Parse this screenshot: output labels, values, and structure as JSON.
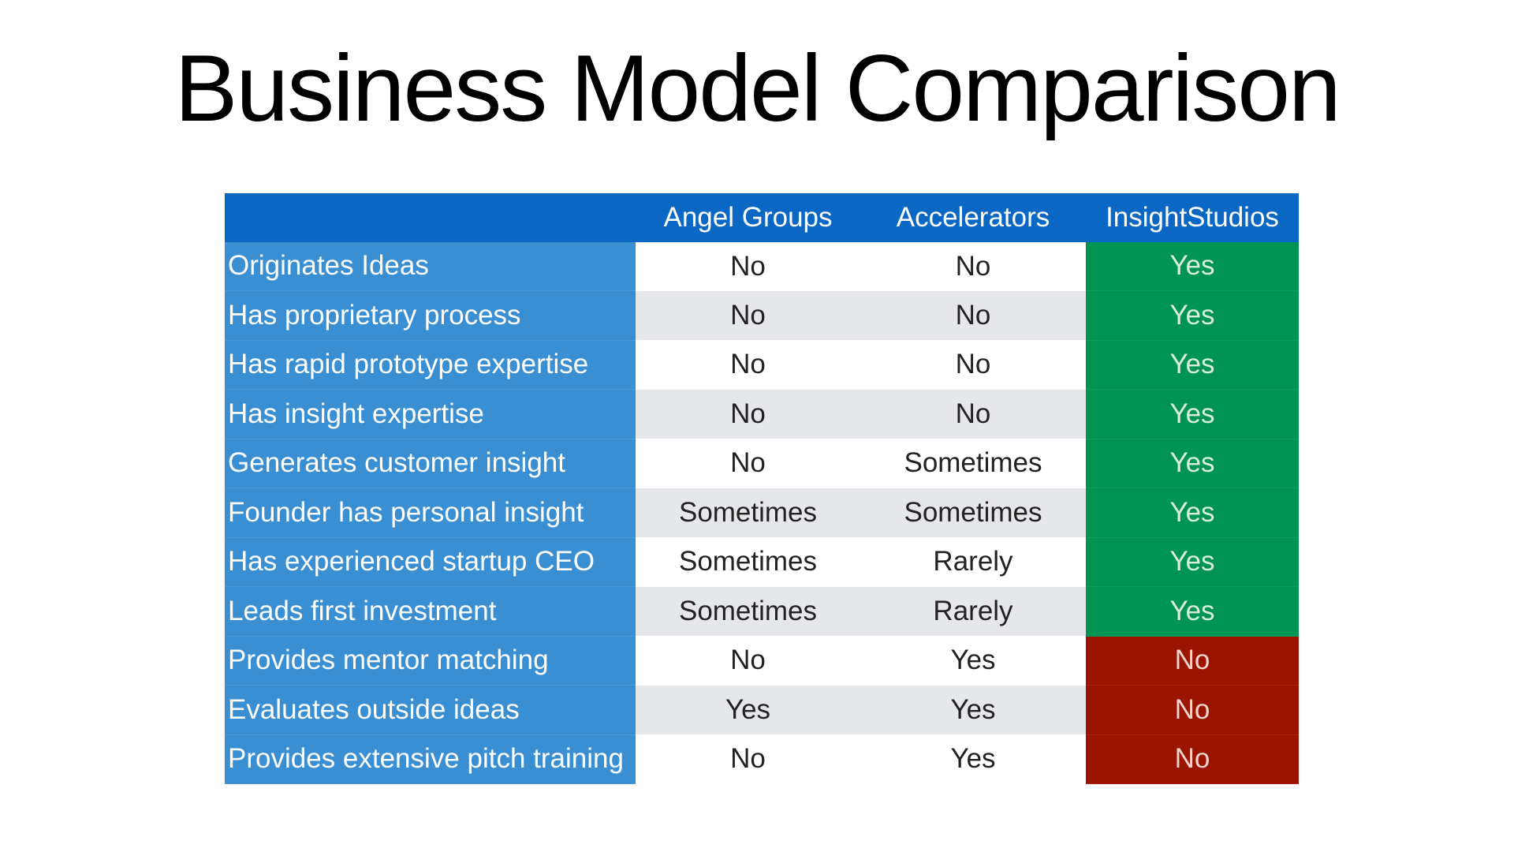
{
  "slide": {
    "title": "Business Model Comparison"
  },
  "table": {
    "headers": [
      "",
      "Angel Groups",
      "Accelerators",
      "InsightStudios"
    ],
    "rows": [
      {
        "feature": "Originates Ideas",
        "angel": "No",
        "accelerators": "No",
        "insight": "Yes"
      },
      {
        "feature": "Has proprietary process",
        "angel": "No",
        "accelerators": "No",
        "insight": "Yes"
      },
      {
        "feature": "Has rapid prototype expertise",
        "angel": "No",
        "accelerators": "No",
        "insight": "Yes"
      },
      {
        "feature": "Has insight expertise",
        "angel": "No",
        "accelerators": "No",
        "insight": "Yes"
      },
      {
        "feature": "Generates customer insight",
        "angel": "No",
        "accelerators": "Sometimes",
        "insight": "Yes"
      },
      {
        "feature": "Founder has personal insight",
        "angel": "Sometimes",
        "accelerators": "Sometimes",
        "insight": "Yes"
      },
      {
        "feature": "Has experienced startup CEO",
        "angel": "Sometimes",
        "accelerators": "Rarely",
        "insight": "Yes"
      },
      {
        "feature": "Leads first investment",
        "angel": "Sometimes",
        "accelerators": "Rarely",
        "insight": "Yes"
      },
      {
        "feature": "Provides mentor matching",
        "angel": "No",
        "accelerators": "Yes",
        "insight": "No"
      },
      {
        "feature": "Evaluates outside ideas",
        "angel": "Yes",
        "accelerators": "Yes",
        "insight": "No"
      },
      {
        "feature": "Provides extensive pitch training",
        "angel": "No",
        "accelerators": "Yes",
        "insight": "No"
      }
    ]
  },
  "colors": {
    "header_blue": "#0a67c4",
    "feature_blue": "#3a8fd3",
    "yes_green": "#009452",
    "no_red": "#9b1400",
    "stripe_gray": "#e6e7ea"
  }
}
